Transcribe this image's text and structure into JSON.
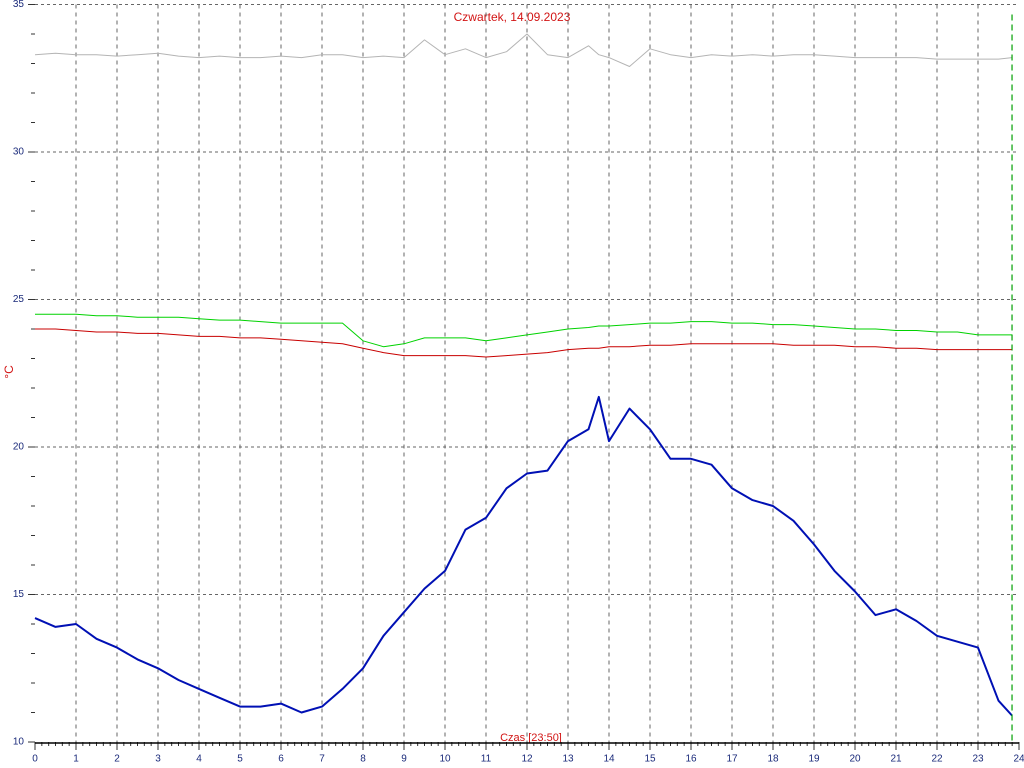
{
  "chart_data": {
    "type": "line",
    "title": "Czwartek, 14.09.2023",
    "ylabel": "°C",
    "xlabel": "Czas [23:50]",
    "x": [
      0,
      0.5,
      1,
      1.5,
      2,
      2.5,
      3,
      3.5,
      4,
      4.5,
      5,
      5.5,
      6,
      6.5,
      7,
      7.5,
      8,
      8.5,
      9,
      9.5,
      10,
      10.5,
      11,
      11.5,
      12,
      12.5,
      13,
      13.5,
      13.75,
      14,
      14.5,
      15,
      15.5,
      16,
      16.5,
      17,
      17.5,
      18,
      18.5,
      19,
      19.5,
      20,
      20.5,
      21,
      21.5,
      22,
      22.5,
      23,
      23.5,
      23.83
    ],
    "series": [
      {
        "color": "#b4b4b4",
        "width": 1,
        "values": [
          33.3,
          33.35,
          33.3,
          33.3,
          33.25,
          33.3,
          33.35,
          33.25,
          33.2,
          33.25,
          33.2,
          33.2,
          33.25,
          33.2,
          33.3,
          33.3,
          33.2,
          33.25,
          33.2,
          33.8,
          33.3,
          33.5,
          33.2,
          33.4,
          34.0,
          33.3,
          33.2,
          33.6,
          33.3,
          33.2,
          32.9,
          33.5,
          33.3,
          33.2,
          33.3,
          33.25,
          33.3,
          33.25,
          33.3,
          33.3,
          33.25,
          33.2,
          33.2,
          33.2,
          33.2,
          33.15,
          33.15,
          33.15,
          33.15,
          33.2
        ]
      },
      {
        "color": "#00d200",
        "width": 1,
        "values": [
          24.5,
          24.5,
          24.5,
          24.45,
          24.45,
          24.4,
          24.4,
          24.4,
          24.35,
          24.3,
          24.3,
          24.25,
          24.2,
          24.2,
          24.2,
          24.2,
          23.6,
          23.4,
          23.5,
          23.7,
          23.7,
          23.7,
          23.6,
          23.7,
          23.8,
          23.9,
          24.0,
          24.05,
          24.1,
          24.1,
          24.15,
          24.2,
          24.2,
          24.25,
          24.25,
          24.2,
          24.2,
          24.15,
          24.15,
          24.1,
          24.05,
          24.0,
          24.0,
          23.95,
          23.95,
          23.9,
          23.9,
          23.8,
          23.8,
          23.8
        ]
      },
      {
        "color": "#c80000",
        "width": 1,
        "values": [
          24.0,
          24.0,
          23.95,
          23.9,
          23.9,
          23.85,
          23.85,
          23.8,
          23.75,
          23.75,
          23.7,
          23.7,
          23.65,
          23.6,
          23.55,
          23.5,
          23.35,
          23.2,
          23.1,
          23.1,
          23.1,
          23.1,
          23.05,
          23.1,
          23.15,
          23.2,
          23.3,
          23.35,
          23.35,
          23.4,
          23.4,
          23.45,
          23.45,
          23.5,
          23.5,
          23.5,
          23.5,
          23.5,
          23.45,
          23.45,
          23.45,
          23.4,
          23.4,
          23.35,
          23.35,
          23.3,
          23.3,
          23.3,
          23.3,
          23.3
        ]
      },
      {
        "color": "#0010b4",
        "width": 2,
        "values": [
          14.2,
          13.9,
          14.0,
          13.5,
          13.2,
          12.8,
          12.5,
          12.1,
          11.8,
          11.5,
          11.2,
          11.2,
          11.3,
          11.0,
          11.2,
          11.8,
          12.5,
          13.6,
          14.4,
          15.2,
          15.8,
          17.2,
          17.6,
          18.6,
          19.1,
          19.2,
          20.2,
          20.6,
          21.7,
          20.2,
          21.3,
          20.6,
          19.6,
          19.6,
          19.4,
          18.6,
          18.2,
          18.0,
          17.5,
          16.7,
          15.8,
          15.1,
          14.3,
          14.5,
          14.1,
          13.6,
          13.4,
          13.2,
          11.4,
          10.9
        ]
      }
    ],
    "xlim": [
      0,
      24
    ],
    "xticks": [
      0,
      1,
      2,
      3,
      4,
      5,
      6,
      7,
      8,
      9,
      10,
      11,
      12,
      13,
      14,
      15,
      16,
      17,
      18,
      19,
      20,
      21,
      22,
      23,
      24
    ],
    "ylim": [
      10,
      35
    ],
    "yticks": [
      10,
      15,
      20,
      25,
      30,
      35
    ],
    "grid": true
  }
}
